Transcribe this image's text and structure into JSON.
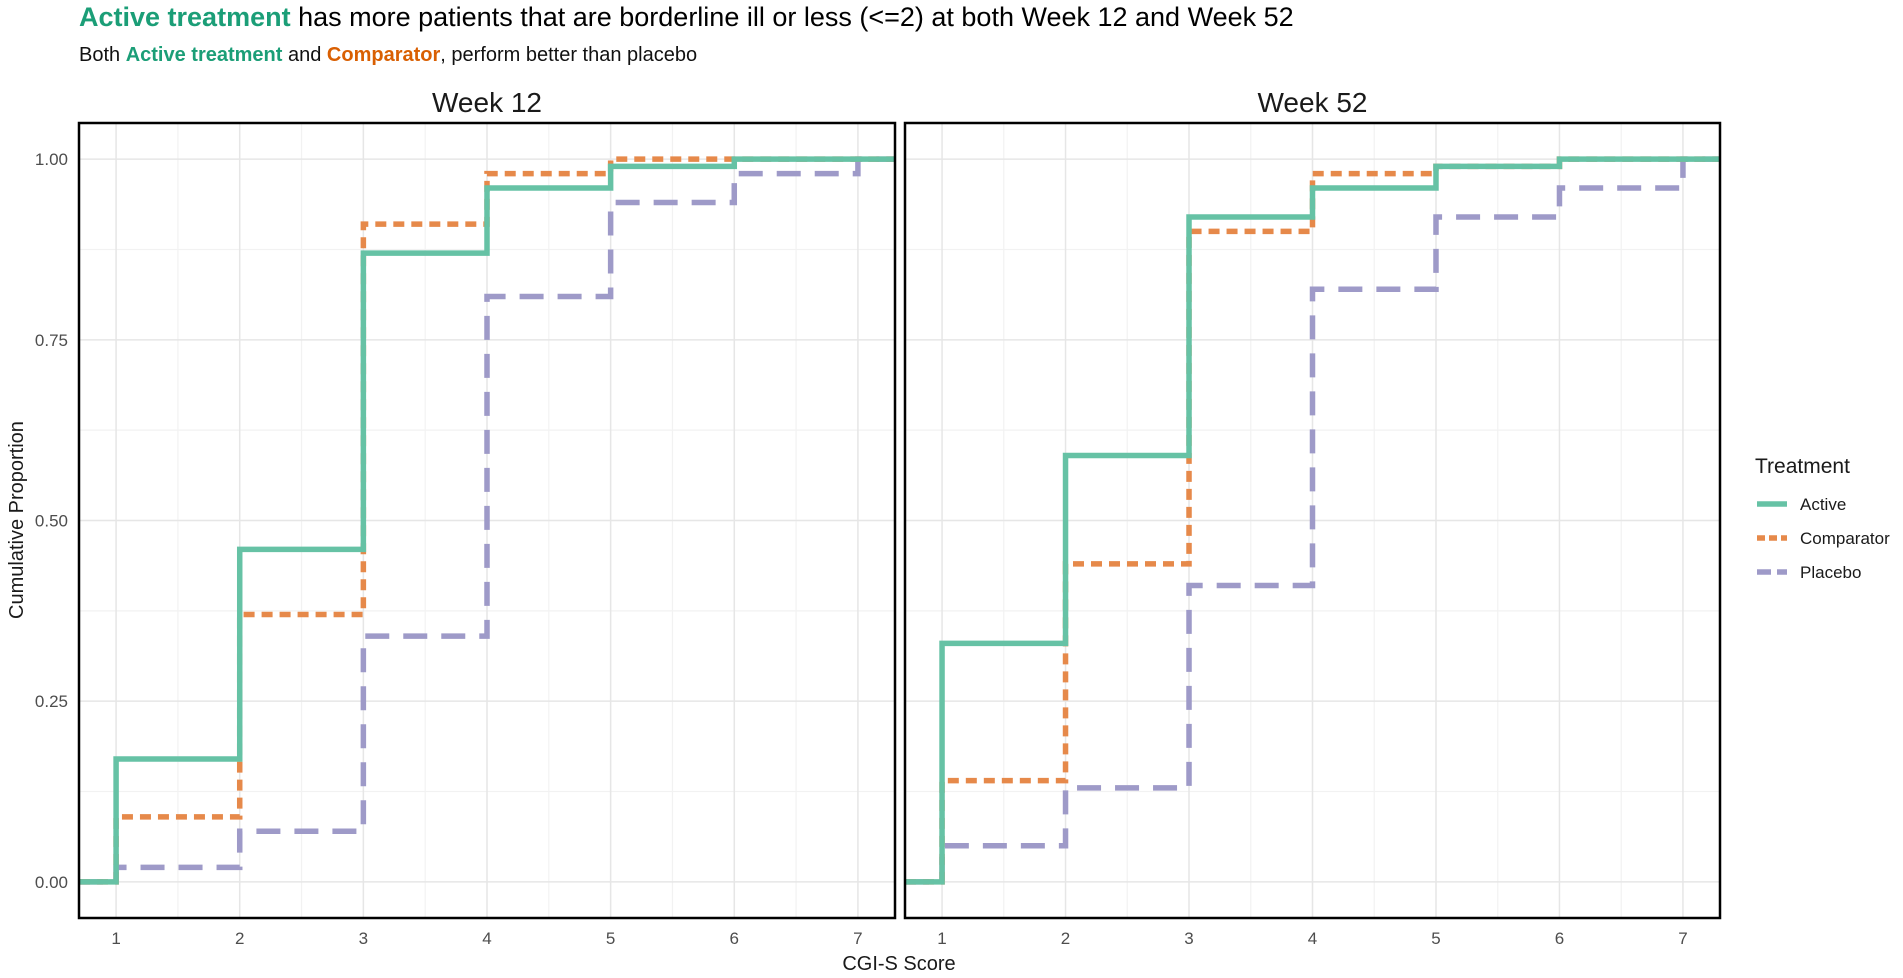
{
  "header": {
    "title_highlight": "Active treatment",
    "title_rest": " has more patients that are borderline ill or less (<=2) at both Week 12 and Week 52",
    "subtitle_prefix": "Both ",
    "subtitle_active": "Active treatment",
    "subtitle_mid": " and ",
    "subtitle_comparator": "Comparator",
    "subtitle_suffix": ", perform better than placebo"
  },
  "colors": {
    "active": "#66c2a5",
    "comparator": "#e6894a",
    "placebo": "#9e9ac8",
    "title_active": "#1b9e77",
    "title_comparator": "#d95f02"
  },
  "chart_data": {
    "type": "line",
    "step": true,
    "xlabel": "CGI-S Score",
    "ylabel": "Cumulative Proportion",
    "xlim": [
      0.7,
      7.3
    ],
    "ylim": [
      -0.05,
      1.05
    ],
    "x_ticks": [
      "1",
      "2",
      "3",
      "4",
      "5",
      "6",
      "7"
    ],
    "y_ticks": [
      "0.00",
      "0.25",
      "0.50",
      "0.75",
      "1.00"
    ],
    "grid": true,
    "legend": {
      "title": "Treatment",
      "placement": "right",
      "entries": [
        "Active",
        "Comparator",
        "Placebo"
      ]
    },
    "facets": [
      {
        "title": "Week 12",
        "series": [
          {
            "name": "Active",
            "line": "solid",
            "x": [
              1,
              2,
              3,
              4,
              5,
              6,
              7
            ],
            "y": [
              0.17,
              0.46,
              0.87,
              0.96,
              0.99,
              1.0,
              1.0
            ]
          },
          {
            "name": "Comparator",
            "line": "dotted",
            "x": [
              1,
              2,
              3,
              4,
              5,
              6,
              7
            ],
            "y": [
              0.09,
              0.37,
              0.91,
              0.98,
              1.0,
              1.0,
              1.0
            ]
          },
          {
            "name": "Placebo",
            "line": "dashed",
            "x": [
              1,
              2,
              3,
              4,
              5,
              6,
              7
            ],
            "y": [
              0.02,
              0.07,
              0.34,
              0.81,
              0.94,
              0.98,
              1.0
            ]
          }
        ]
      },
      {
        "title": "Week 52",
        "series": [
          {
            "name": "Active",
            "line": "solid",
            "x": [
              1,
              2,
              3,
              4,
              5,
              6,
              7
            ],
            "y": [
              0.33,
              0.59,
              0.92,
              0.96,
              0.99,
              1.0,
              1.0
            ]
          },
          {
            "name": "Comparator",
            "line": "dotted",
            "x": [
              1,
              2,
              3,
              4,
              5,
              6,
              7
            ],
            "y": [
              0.14,
              0.44,
              0.9,
              0.98,
              0.99,
              1.0,
              1.0
            ]
          },
          {
            "name": "Placebo",
            "line": "dashed",
            "x": [
              1,
              2,
              3,
              4,
              5,
              6,
              7
            ],
            "y": [
              0.05,
              0.13,
              0.41,
              0.82,
              0.92,
              0.96,
              1.0
            ]
          }
        ]
      }
    ]
  }
}
